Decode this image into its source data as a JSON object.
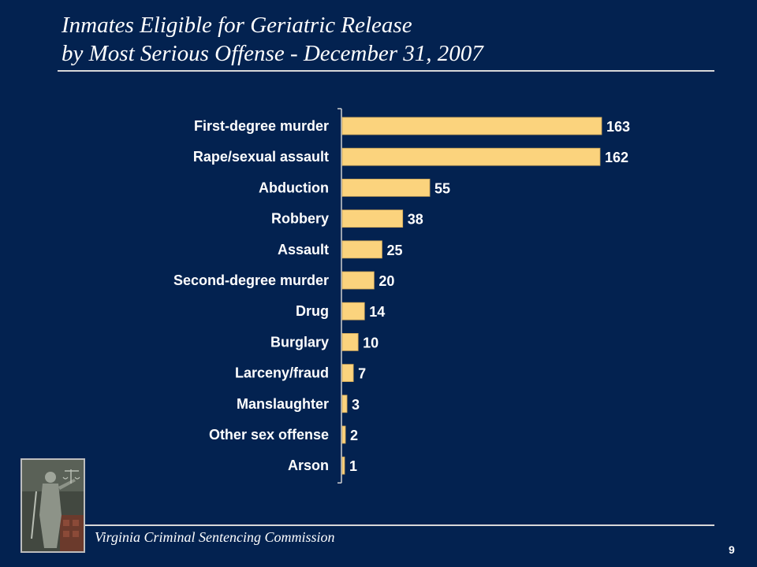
{
  "slide": {
    "title_line1": "Inmates Eligible for Geriatric Release",
    "title_line2": "by Most Serious Offense  - December 31, 2007",
    "footer": "Virginia Criminal Sentencing Commission",
    "page_number": "9",
    "logo_icon": "lady-justice-statue-icon"
  },
  "colors": {
    "background": "#032250",
    "bar": "#fbd37d",
    "text": "#ffffff"
  },
  "chart_data": {
    "type": "bar",
    "orientation": "horizontal",
    "categories": [
      "First-degree murder",
      "Rape/sexual assault",
      "Abduction",
      "Robbery",
      "Assault",
      "Second-degree murder",
      "Drug",
      "Burglary",
      "Larceny/fraud",
      "Manslaughter",
      "Other sex offense",
      "Arson"
    ],
    "values": [
      163,
      162,
      55,
      38,
      25,
      20,
      14,
      10,
      7,
      3,
      2,
      1
    ],
    "value_labels": [
      "163",
      "162",
      "55",
      "38",
      "25",
      "20",
      "14",
      "10",
      "7",
      "3",
      "2",
      "1"
    ],
    "xlim": [
      0,
      163
    ],
    "grid": false,
    "legend": "none"
  }
}
